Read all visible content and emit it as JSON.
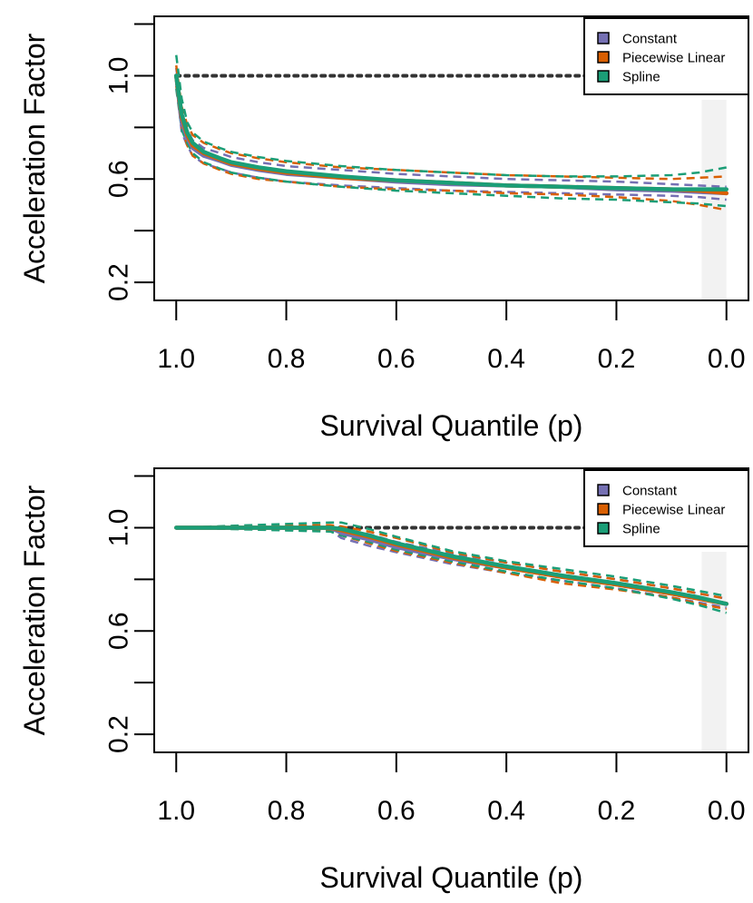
{
  "colors": {
    "constant": "#7570b3",
    "piecewise": "#d95f02",
    "spline": "#1b9e77",
    "reference": "#333333",
    "shade": "#f2f2f2"
  },
  "chart_data": [
    {
      "type": "line",
      "id": "top",
      "xlabel": "Survival Quantile (p)",
      "ylabel": "Acceleration Factor",
      "xlim": [
        1.04,
        -0.04
      ],
      "ylim": [
        0.13,
        1.23
      ],
      "x_ticks": [
        1.0,
        0.8,
        0.6,
        0.4,
        0.2,
        0.0
      ],
      "x_tick_labels": [
        "1.0",
        "0.8",
        "0.6",
        "0.4",
        "0.2",
        "0.0"
      ],
      "y_ticks": [
        0.2,
        0.4,
        0.6,
        0.8,
        1.0,
        1.2
      ],
      "y_tick_labels": [
        "0.2",
        "",
        "0.6",
        "",
        "1.0",
        ""
      ],
      "reference_line": {
        "y": 1.0,
        "x_from": 1.0,
        "x_to": 0.0,
        "style": "dotted"
      },
      "shaded_region": {
        "x_from": 0.045,
        "x_to": 0.0
      },
      "legend": {
        "position": "top-right",
        "entries": [
          "Constant",
          "Piecewise Linear",
          "Spline"
        ]
      },
      "series": [
        {
          "name": "Constant",
          "color_key": "constant",
          "x": [
            1.0,
            0.99,
            0.98,
            0.97,
            0.95,
            0.92,
            0.9,
            0.85,
            0.8,
            0.7,
            0.6,
            0.5,
            0.4,
            0.3,
            0.2,
            0.1,
            0.05,
            0.0
          ],
          "y": [
            1.0,
            0.82,
            0.76,
            0.72,
            0.69,
            0.67,
            0.655,
            0.635,
            0.62,
            0.605,
            0.59,
            0.58,
            0.575,
            0.57,
            0.56,
            0.555,
            0.55,
            0.545
          ],
          "lower": [
            0.97,
            0.78,
            0.73,
            0.69,
            0.66,
            0.64,
            0.625,
            0.605,
            0.59,
            0.575,
            0.565,
            0.555,
            0.55,
            0.545,
            0.54,
            0.535,
            0.53,
            0.52
          ],
          "upper": [
            1.03,
            0.86,
            0.79,
            0.75,
            0.72,
            0.7,
            0.685,
            0.665,
            0.65,
            0.635,
            0.62,
            0.61,
            0.6,
            0.595,
            0.59,
            0.58,
            0.575,
            0.57
          ]
        },
        {
          "name": "Piecewise Linear",
          "color_key": "piecewise",
          "x": [
            1.0,
            0.99,
            0.98,
            0.97,
            0.95,
            0.92,
            0.9,
            0.85,
            0.8,
            0.7,
            0.6,
            0.5,
            0.4,
            0.3,
            0.2,
            0.1,
            0.05,
            0.0
          ],
          "y": [
            1.0,
            0.84,
            0.77,
            0.73,
            0.7,
            0.675,
            0.66,
            0.64,
            0.625,
            0.605,
            0.595,
            0.585,
            0.575,
            0.57,
            0.565,
            0.56,
            0.555,
            0.545
          ],
          "lower": [
            0.96,
            0.8,
            0.73,
            0.69,
            0.66,
            0.635,
            0.62,
            0.6,
            0.59,
            0.57,
            0.56,
            0.555,
            0.545,
            0.54,
            0.53,
            0.515,
            0.5,
            0.48
          ],
          "upper": [
            1.04,
            0.88,
            0.81,
            0.77,
            0.74,
            0.715,
            0.7,
            0.68,
            0.665,
            0.645,
            0.635,
            0.625,
            0.615,
            0.61,
            0.605,
            0.6,
            0.605,
            0.61
          ]
        },
        {
          "name": "Spline",
          "color_key": "spline",
          "x": [
            1.0,
            0.99,
            0.98,
            0.97,
            0.95,
            0.92,
            0.9,
            0.85,
            0.8,
            0.7,
            0.6,
            0.5,
            0.4,
            0.3,
            0.2,
            0.1,
            0.05,
            0.0
          ],
          "y": [
            1.0,
            0.85,
            0.78,
            0.74,
            0.705,
            0.68,
            0.665,
            0.645,
            0.63,
            0.61,
            0.595,
            0.585,
            0.575,
            0.57,
            0.565,
            0.56,
            0.56,
            0.56
          ],
          "lower": [
            0.95,
            0.79,
            0.74,
            0.7,
            0.665,
            0.64,
            0.625,
            0.605,
            0.59,
            0.57,
            0.555,
            0.545,
            0.535,
            0.525,
            0.52,
            0.51,
            0.505,
            0.495
          ],
          "upper": [
            1.08,
            0.91,
            0.82,
            0.78,
            0.745,
            0.72,
            0.705,
            0.685,
            0.67,
            0.65,
            0.635,
            0.625,
            0.615,
            0.61,
            0.61,
            0.615,
            0.625,
            0.645
          ]
        }
      ]
    },
    {
      "type": "line",
      "id": "bottom",
      "xlabel": "Survival Quantile (p)",
      "ylabel": "Acceleration Factor",
      "xlim": [
        1.04,
        -0.04
      ],
      "ylim": [
        0.13,
        1.23
      ],
      "x_ticks": [
        1.0,
        0.8,
        0.6,
        0.4,
        0.2,
        0.0
      ],
      "x_tick_labels": [
        "1.0",
        "0.8",
        "0.6",
        "0.4",
        "0.2",
        "0.0"
      ],
      "y_ticks": [
        0.2,
        0.4,
        0.6,
        0.8,
        1.0,
        1.2
      ],
      "y_tick_labels": [
        "0.2",
        "",
        "0.6",
        "",
        "1.0",
        ""
      ],
      "reference_line": {
        "y": 1.0,
        "x_from": 0.72,
        "x_to": 0.0,
        "style": "dotted"
      },
      "shaded_region": {
        "x_from": 0.045,
        "x_to": 0.0
      },
      "legend": {
        "position": "top-right",
        "entries": [
          "Constant",
          "Piecewise Linear",
          "Spline"
        ]
      },
      "series": [
        {
          "name": "Constant",
          "color_key": "constant",
          "x": [
            1.0,
            0.72,
            0.7,
            0.65,
            0.6,
            0.5,
            0.4,
            0.3,
            0.2,
            0.1,
            0.05,
            0.0
          ],
          "y": [
            1.0,
            1.0,
            0.98,
            0.955,
            0.925,
            0.88,
            0.845,
            0.81,
            0.78,
            0.745,
            0.725,
            0.705
          ],
          "lower": [
            1.0,
            0.99,
            0.96,
            0.93,
            0.905,
            0.86,
            0.825,
            0.795,
            0.765,
            0.73,
            0.71,
            0.69
          ],
          "upper": [
            1.0,
            1.0,
            0.995,
            0.975,
            0.945,
            0.9,
            0.865,
            0.83,
            0.8,
            0.765,
            0.745,
            0.725
          ]
        },
        {
          "name": "Piecewise Linear",
          "color_key": "piecewise",
          "x": [
            1.0,
            0.72,
            0.7,
            0.65,
            0.6,
            0.5,
            0.4,
            0.3,
            0.2,
            0.1,
            0.05,
            0.0
          ],
          "y": [
            1.0,
            1.0,
            0.99,
            0.965,
            0.935,
            0.885,
            0.845,
            0.81,
            0.78,
            0.745,
            0.725,
            0.705
          ],
          "lower": [
            1.0,
            0.99,
            0.97,
            0.94,
            0.91,
            0.865,
            0.825,
            0.785,
            0.76,
            0.73,
            0.705,
            0.685
          ],
          "upper": [
            1.0,
            1.01,
            1.005,
            0.985,
            0.96,
            0.905,
            0.865,
            0.83,
            0.8,
            0.765,
            0.745,
            0.725
          ]
        },
        {
          "name": "Spline",
          "color_key": "spline",
          "x": [
            1.0,
            0.72,
            0.7,
            0.65,
            0.6,
            0.5,
            0.4,
            0.3,
            0.2,
            0.1,
            0.05,
            0.0
          ],
          "y": [
            1.0,
            1.0,
            0.995,
            0.97,
            0.94,
            0.89,
            0.85,
            0.815,
            0.785,
            0.75,
            0.73,
            0.705
          ],
          "lower": [
            1.0,
            0.985,
            0.97,
            0.945,
            0.915,
            0.87,
            0.83,
            0.795,
            0.765,
            0.725,
            0.7,
            0.67
          ],
          "upper": [
            1.0,
            1.02,
            1.02,
            0.995,
            0.965,
            0.91,
            0.87,
            0.84,
            0.81,
            0.775,
            0.755,
            0.735
          ]
        }
      ]
    }
  ]
}
